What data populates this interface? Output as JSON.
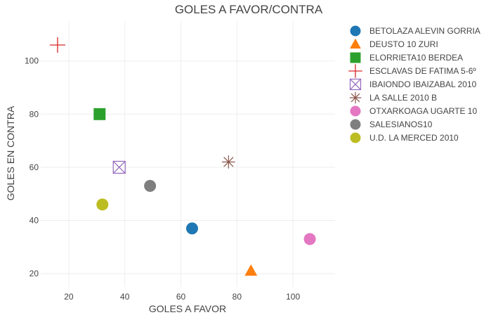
{
  "chart_data": {
    "type": "scatter",
    "title": "GOLES A FAVOR/CONTRA",
    "xlabel": "GOLES A FAVOR",
    "ylabel": "GOLES EN CONTRA",
    "xlim": [
      10,
      115
    ],
    "ylim": [
      15,
      115
    ],
    "xticks": [
      20,
      40,
      60,
      80,
      100
    ],
    "yticks": [
      20,
      40,
      60,
      80,
      100
    ],
    "grid": true,
    "legend_position": "right",
    "series": [
      {
        "name": "BETOLAZA ALEVIN GORRIA",
        "x": 64,
        "y": 37,
        "marker": "circle",
        "color": "#1f77b4"
      },
      {
        "name": "DEUSTO 10 ZURI",
        "x": 85,
        "y": 21,
        "marker": "triangle-up",
        "color": "#ff7f0e"
      },
      {
        "name": "ELORRIETA10 BERDEA",
        "x": 31,
        "y": 80,
        "marker": "square",
        "color": "#2ca02c"
      },
      {
        "name": "ESCLAVAS DE FATIMA 5-6º",
        "x": 16,
        "y": 106,
        "marker": "cross-thin",
        "color": "#d62728"
      },
      {
        "name": "IBAIONDO IBAIZABAL 2010",
        "x": 38,
        "y": 60,
        "marker": "square-x-open",
        "color": "#9467bd"
      },
      {
        "name": "LA SALLE 2010 B",
        "x": 77,
        "y": 62,
        "marker": "asterisk",
        "color": "#8c564b"
      },
      {
        "name": "OTXARKOAGA UGARTE 10",
        "x": 106,
        "y": 33,
        "marker": "circle",
        "color": "#e377c2"
      },
      {
        "name": "SALESIANOS10",
        "x": 49,
        "y": 53,
        "marker": "circle",
        "color": "#7f7f7f"
      },
      {
        "name": "U.D. LA MERCED 2010",
        "x": 32,
        "y": 46,
        "marker": "circle",
        "color": "#bcbd22"
      }
    ]
  }
}
